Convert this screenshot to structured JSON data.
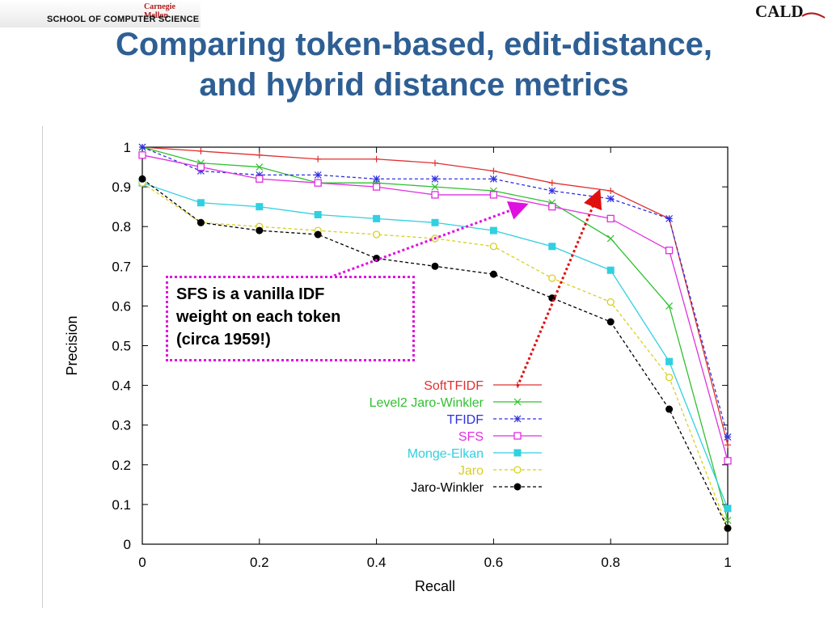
{
  "header": {
    "institution": "Carnegie Mellon",
    "school": "SCHOOL OF COMPUTER SCIENCE",
    "logo": "CALD"
  },
  "slide": {
    "title_line1": "Comparing token-based, edit-distance,",
    "title_line2": "and hybrid distance metrics"
  },
  "annotation": {
    "line1": "SFS is a vanilla IDF",
    "line2": "weight on each token",
    "line3": "(circa 1959!)",
    "color": "#e010e0"
  },
  "chart_data": {
    "type": "line",
    "xlabel": "Recall",
    "ylabel": "Precision",
    "xlim": [
      0,
      1
    ],
    "ylim": [
      0,
      1
    ],
    "xticks": [
      "0",
      "0.2",
      "0.4",
      "0.6",
      "0.8",
      "1"
    ],
    "yticks": [
      "0",
      "0.1",
      "0.2",
      "0.3",
      "0.4",
      "0.5",
      "0.6",
      "0.7",
      "0.8",
      "0.9",
      "1"
    ],
    "x": [
      0,
      0.1,
      0.2,
      0.3,
      0.4,
      0.5,
      0.6,
      0.7,
      0.8,
      0.9,
      1
    ],
    "legend_position": "center-right",
    "series": [
      {
        "name": "SoftTFIDF",
        "color": "#e03030",
        "marker": "plus",
        "dash": "solid",
        "values": [
          1.0,
          0.99,
          0.98,
          0.97,
          0.97,
          0.96,
          0.94,
          0.91,
          0.89,
          0.82,
          0.25
        ]
      },
      {
        "name": "Level2 Jaro-Winkler",
        "color": "#30c030",
        "marker": "x",
        "dash": "solid",
        "values": [
          1.0,
          0.96,
          0.95,
          0.91,
          0.91,
          0.9,
          0.89,
          0.86,
          0.77,
          0.6,
          0.06
        ]
      },
      {
        "name": "TFIDF",
        "color": "#3030e0",
        "marker": "star",
        "dash": "dashed",
        "values": [
          1.0,
          0.94,
          0.93,
          0.93,
          0.92,
          0.92,
          0.92,
          0.89,
          0.87,
          0.82,
          0.27
        ]
      },
      {
        "name": "SFS",
        "color": "#e030e0",
        "marker": "square-open",
        "dash": "solid",
        "values": [
          0.98,
          0.95,
          0.92,
          0.91,
          0.9,
          0.88,
          0.88,
          0.85,
          0.82,
          0.74,
          0.21
        ]
      },
      {
        "name": "Monge-Elkan",
        "color": "#30d0e0",
        "marker": "square-filled",
        "dash": "solid",
        "values": [
          0.91,
          0.86,
          0.85,
          0.83,
          0.82,
          0.81,
          0.79,
          0.75,
          0.69,
          0.46,
          0.09
        ]
      },
      {
        "name": "Jaro",
        "color": "#d8d020",
        "marker": "circle-open",
        "dash": "dashed",
        "values": [
          0.91,
          0.81,
          0.8,
          0.79,
          0.78,
          0.77,
          0.75,
          0.67,
          0.61,
          0.42,
          0.04
        ]
      },
      {
        "name": "Jaro-Winkler",
        "color": "#000000",
        "marker": "circle-filled",
        "dash": "dashed",
        "values": [
          0.92,
          0.81,
          0.79,
          0.78,
          0.72,
          0.7,
          0.68,
          0.62,
          0.56,
          0.34,
          0.04
        ]
      }
    ]
  }
}
